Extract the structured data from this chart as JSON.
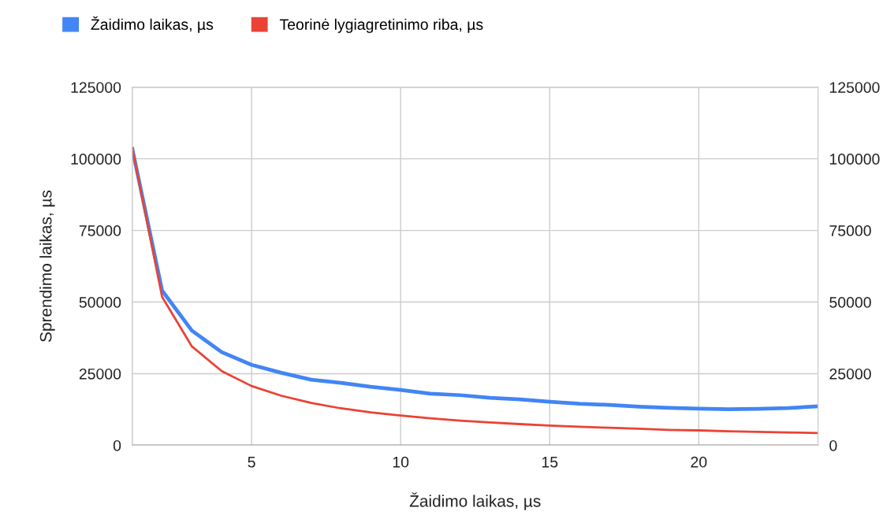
{
  "chart_data": {
    "type": "line",
    "xlabel": "Žaidimo laikas, µs",
    "ylabel": "Sprendimo laikas, µs",
    "x": [
      1,
      2,
      3,
      4,
      5,
      6,
      7,
      8,
      9,
      10,
      11,
      12,
      13,
      14,
      15,
      16,
      17,
      18,
      19,
      20,
      21,
      22,
      23,
      24
    ],
    "series": [
      {
        "name": "Žaidimo laikas, µs",
        "color": "#4285f4",
        "values": [
          103500,
          54000,
          40000,
          32500,
          28100,
          25300,
          22900,
          21800,
          20400,
          19300,
          18000,
          17500,
          16600,
          16000,
          15200,
          14500,
          14100,
          13500,
          13100,
          12800,
          12600,
          12700,
          13000,
          13600
        ]
      },
      {
        "name": "Teorinė lygiagretinimo riba, µs",
        "color": "#ea4335",
        "values": [
          103500,
          51800,
          34500,
          25900,
          20700,
          17300,
          14800,
          12900,
          11500,
          10400,
          9400,
          8600,
          8000,
          7400,
          6900,
          6500,
          6100,
          5800,
          5400,
          5200,
          4900,
          4700,
          4500,
          4300
        ]
      }
    ],
    "xlim": [
      1,
      24
    ],
    "xticks": [
      5,
      10,
      15,
      20
    ],
    "ylim": [
      0,
      125000
    ],
    "yticks": [
      0,
      25000,
      50000,
      75000,
      100000,
      125000
    ],
    "y2lim": [
      0,
      125000
    ],
    "y2ticks": [
      0,
      25000,
      50000,
      75000,
      100000,
      125000
    ],
    "grid": true,
    "legend": "top left",
    "marker": "none",
    "line_style": "solid"
  }
}
